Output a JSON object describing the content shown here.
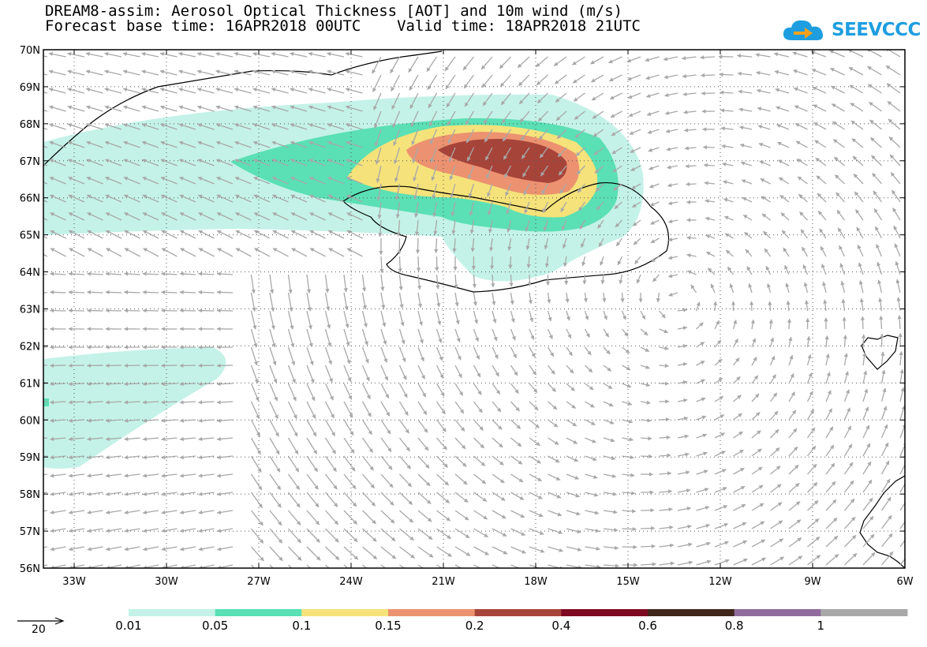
{
  "header": {
    "title_line1": "DREAM8-assim: Aerosol Optical Thickness [AOT] and 10m wind (m/s)",
    "title_line2": "Forecast base time: 16APR2018 00UTC    Valid time: 18APR2018 21UTC"
  },
  "logo": {
    "text": "SEEVCCC",
    "icon": "cloud-arrow-icon",
    "color": "#1e9ee0"
  },
  "map": {
    "lat_labels": [
      "70N",
      "69N",
      "68N",
      "67N",
      "66N",
      "65N",
      "64N",
      "63N",
      "62N",
      "61N",
      "60N",
      "59N",
      "58N",
      "57N",
      "56N"
    ],
    "lon_labels": [
      "33W",
      "30W",
      "27W",
      "24W",
      "21W",
      "18W",
      "15W",
      "12W",
      "9W",
      "6W"
    ],
    "lat_range": [
      56,
      70
    ],
    "lon_range": [
      -34,
      -6
    ],
    "wind_arrow_color": "#a8a8a8",
    "coastline_color": "#000000"
  },
  "legend": {
    "reference_vector_label": "20",
    "colorbar": [
      {
        "label": "0.01",
        "color": "#c4f2e8"
      },
      {
        "label": "0.05",
        "color": "#5ae0b4"
      },
      {
        "label": "0.1",
        "color": "#f5e27a"
      },
      {
        "label": "0.15",
        "color": "#ec9270"
      },
      {
        "label": "0.2",
        "color": "#a7443a"
      },
      {
        "label": "0.4",
        "color": "#7d0a22"
      },
      {
        "label": "0.6",
        "color": "#40261a"
      },
      {
        "label": "0.8",
        "color": "#926b9e"
      },
      {
        "label": "1",
        "color": "#a8a8a8"
      }
    ]
  }
}
